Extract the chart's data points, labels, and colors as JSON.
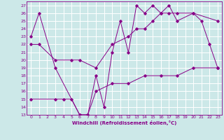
{
  "xlabel": "Windchill (Refroidissement éolien,°C)",
  "xlim": [
    -0.5,
    23.5
  ],
  "ylim": [
    13,
    27.5
  ],
  "xticks": [
    0,
    1,
    2,
    3,
    4,
    5,
    6,
    7,
    8,
    9,
    10,
    11,
    12,
    13,
    14,
    15,
    16,
    17,
    18,
    19,
    20,
    21,
    22,
    23
  ],
  "yticks": [
    13,
    14,
    15,
    16,
    17,
    18,
    19,
    20,
    21,
    22,
    23,
    24,
    25,
    26,
    27
  ],
  "bg_color": "#cce8e8",
  "grid_color": "#ffffff",
  "line_color": "#880088",
  "line1_x": [
    0,
    1,
    3,
    6,
    7,
    8,
    9,
    10,
    11,
    12,
    13,
    14,
    15,
    16,
    17,
    18,
    20,
    21,
    22,
    23
  ],
  "line1_y": [
    23,
    26,
    19,
    13,
    13,
    18,
    14,
    21,
    25,
    21,
    27,
    26,
    27,
    26,
    27,
    25,
    26,
    25,
    22,
    19
  ],
  "line2_x": [
    0,
    1,
    3,
    5,
    6,
    8,
    10,
    12,
    13,
    14,
    15,
    16,
    17,
    18,
    20,
    23
  ],
  "line2_y": [
    22,
    22,
    20,
    20,
    20,
    19,
    22,
    23,
    24,
    24,
    25,
    26,
    26,
    26,
    26,
    25
  ],
  "line3_x": [
    0,
    3,
    4,
    5,
    6,
    7,
    8,
    10,
    12,
    14,
    16,
    18,
    20,
    23
  ],
  "line3_y": [
    15,
    15,
    15,
    15,
    13,
    13,
    16,
    17,
    17,
    18,
    18,
    18,
    19,
    19
  ]
}
